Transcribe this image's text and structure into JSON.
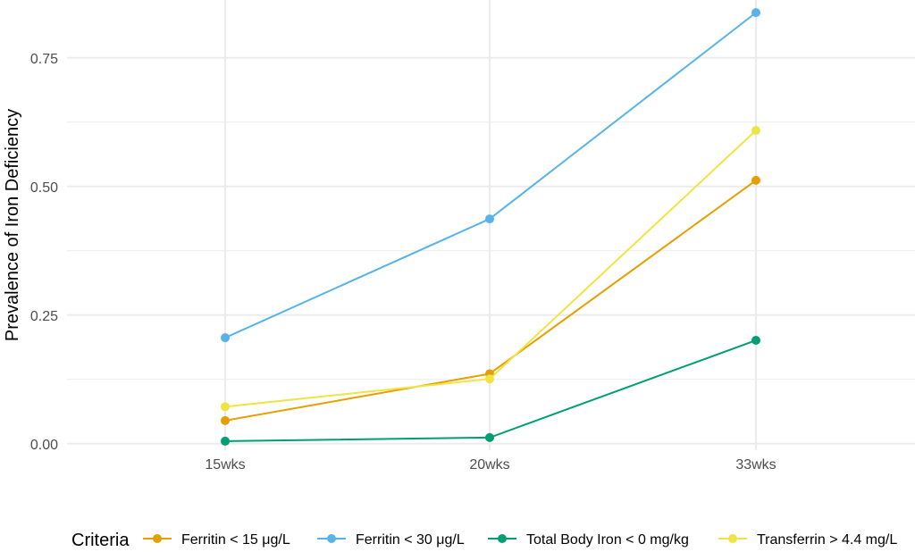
{
  "chart_data": {
    "type": "line",
    "title": "",
    "xlabel": "",
    "ylabel": "Prevalence of Iron Deficiency",
    "categories": [
      "15wks",
      "20wks",
      "33wks"
    ],
    "ylim": [
      -0.0125,
      0.8625
    ],
    "yticks": [
      0.0,
      0.25,
      0.5,
      0.75
    ],
    "ytick_labels": [
      "0.00",
      "0.25",
      "0.50",
      "0.75"
    ],
    "grid": true,
    "legend": {
      "title": "Criteria",
      "position": "bottom"
    },
    "series": [
      {
        "name": "Ferritin < 15 μg/L",
        "color": "#E69F00",
        "values": [
          0.045,
          0.136,
          0.512
        ]
      },
      {
        "name": "Ferritin < 30 μg/L",
        "color": "#56B4E9",
        "values": [
          0.206,
          0.437,
          0.838
        ]
      },
      {
        "name": "Total Body Iron < 0 mg/kg",
        "color": "#009E73",
        "values": [
          0.005,
          0.012,
          0.201
        ]
      },
      {
        "name": "Transferrin > 4.4 mg/L",
        "color": "#F0E442",
        "values": [
          0.072,
          0.126,
          0.609
        ]
      }
    ]
  }
}
